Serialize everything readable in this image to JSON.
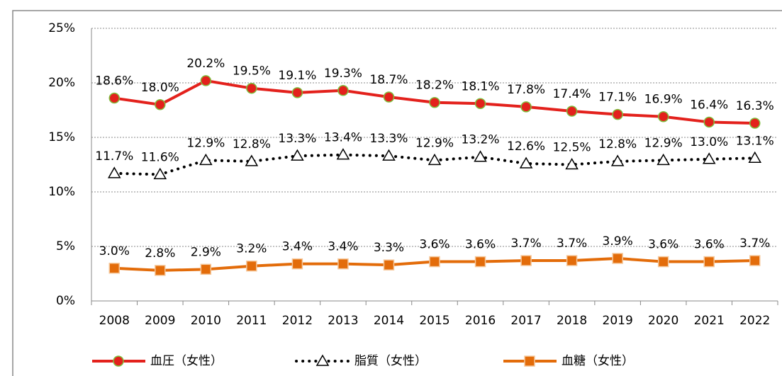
{
  "chart_data": {
    "type": "line",
    "categories": [
      "2008",
      "2009",
      "2010",
      "2011",
      "2012",
      "2013",
      "2014",
      "2015",
      "2016",
      "2017",
      "2018",
      "2019",
      "2020",
      "2021",
      "2022"
    ],
    "series": [
      {
        "name": "血圧（女性）",
        "color": "#e3211c",
        "marker": "circle",
        "values": [
          18.6,
          18.0,
          20.2,
          19.5,
          19.1,
          19.3,
          18.7,
          18.2,
          18.1,
          17.8,
          17.4,
          17.1,
          16.9,
          16.4,
          16.3
        ],
        "value_labels": [
          "18.6%",
          "18.0%",
          "20.2%",
          "19.5%",
          "19.1%",
          "19.3%",
          "18.7%",
          "18.2%",
          "18.1%",
          "17.8%",
          "17.4%",
          "17.1%",
          "16.9%",
          "16.4%",
          "16.3%"
        ]
      },
      {
        "name": "脂質（女性）",
        "color": "#000000",
        "marker": "triangle",
        "dash": "dotted",
        "values": [
          11.7,
          11.6,
          12.9,
          12.8,
          13.3,
          13.4,
          13.3,
          12.9,
          13.2,
          12.6,
          12.5,
          12.8,
          12.9,
          13.0,
          13.1
        ],
        "value_labels": [
          "11.7%",
          "11.6%",
          "12.9%",
          "12.8%",
          "13.3%",
          "13.4%",
          "13.3%",
          "12.9%",
          "13.2%",
          "12.6%",
          "12.5%",
          "12.8%",
          "12.9%",
          "13.0%",
          "13.1%"
        ]
      },
      {
        "name": "血糖（女性）",
        "color": "#e36c0a",
        "marker": "square",
        "values": [
          3.0,
          2.8,
          2.9,
          3.2,
          3.4,
          3.4,
          3.3,
          3.6,
          3.6,
          3.7,
          3.7,
          3.9,
          3.6,
          3.6,
          3.7
        ],
        "value_labels": [
          "3.0%",
          "2.8%",
          "2.9%",
          "3.2%",
          "3.4%",
          "3.4%",
          "3.3%",
          "3.6%",
          "3.6%",
          "3.7%",
          "3.7%",
          "3.9%",
          "3.6%",
          "3.6%",
          "3.7%"
        ]
      }
    ],
    "ylim": [
      0,
      25
    ],
    "yticks": [
      {
        "value": 0,
        "label": "0%"
      },
      {
        "value": 5,
        "label": "5%"
      },
      {
        "value": 10,
        "label": "10%"
      },
      {
        "value": 15,
        "label": "15%"
      },
      {
        "value": 20,
        "label": "20%"
      },
      {
        "value": 25,
        "label": "25%"
      }
    ],
    "grid": true,
    "legend": "bottom"
  }
}
